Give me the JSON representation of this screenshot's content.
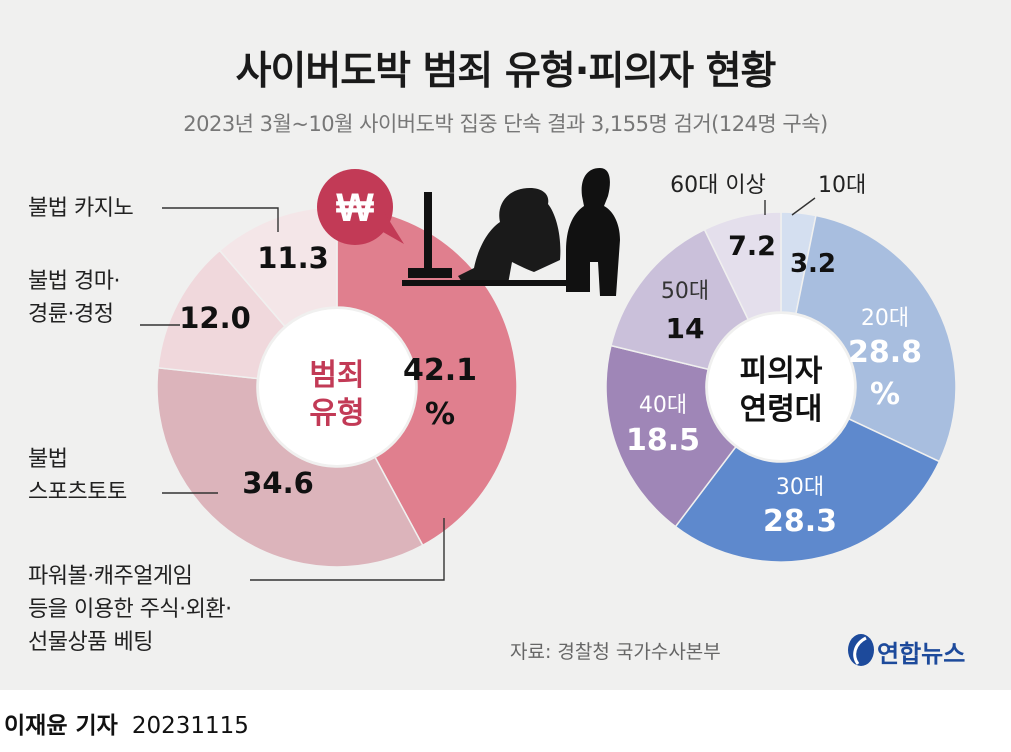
{
  "title": "사이버도박 범죄 유형·피의자 현황",
  "subtitle": "2023년 3월~10월 사이버도박 집중 단속 결과 3,155명 검거(124명 구속)",
  "source": "자료: 경찰청 국가수사본부",
  "logo": "연합뉴스",
  "byline_name": "이재윤 기자",
  "byline_date": "20231115",
  "colors": {
    "type_main": "#e07f8e",
    "type_accent": "#c23a56",
    "age_30s": "#5e89cd",
    "age_20s": "#a8bedf",
    "age_40s": "#9f86b7"
  },
  "chart_data": [
    {
      "type": "pie",
      "title": "범죄 유형",
      "center_label": [
        "범죄",
        "유형"
      ],
      "unit": "%",
      "slices": [
        {
          "label": "파워볼·캐주얼게임 등을 이용한 주식·외환·선물상품 베팅",
          "value": 42.1,
          "display": "42.1",
          "label_lines": [
            "파워볼·캐주얼게임",
            "등을 이용한 주식·외환·",
            "선물상품 베팅"
          ],
          "color": "#e07f8e"
        },
        {
          "label": "불법 스포츠토토",
          "value": 34.6,
          "display": "34.6",
          "label_lines": [
            "불법",
            "스포츠토토"
          ],
          "color": "#dcb4bb"
        },
        {
          "label": "불법 경마·경륜·경정",
          "value": 12.0,
          "display": "12.0",
          "label_lines": [
            "불법 경마·",
            "경륜·경정"
          ],
          "color": "#f0d8dc"
        },
        {
          "label": "불법 카지노",
          "value": 11.3,
          "display": "11.3",
          "label_lines": [
            "불법 카지노"
          ],
          "color": "#f4e6e8"
        }
      ]
    },
    {
      "type": "pie",
      "title": "피의자 연령대",
      "center_label": [
        "피의자",
        "연령대"
      ],
      "unit": "%",
      "slices": [
        {
          "label": "10대",
          "value": 3.2,
          "display": "3.2",
          "color": "#d4dff0"
        },
        {
          "label": "20대",
          "value": 28.8,
          "display": "28.8",
          "color": "#a8bedf"
        },
        {
          "label": "30대",
          "value": 28.3,
          "display": "28.3",
          "color": "#5e89cd"
        },
        {
          "label": "40대",
          "value": 18.5,
          "display": "18.5",
          "color": "#9f86b7"
        },
        {
          "label": "50대",
          "value": 14.0,
          "display": "14",
          "color": "#cac0da"
        },
        {
          "label": "60대 이상",
          "value": 7.2,
          "display": "7.2",
          "color": "#e4dfec"
        }
      ]
    }
  ]
}
